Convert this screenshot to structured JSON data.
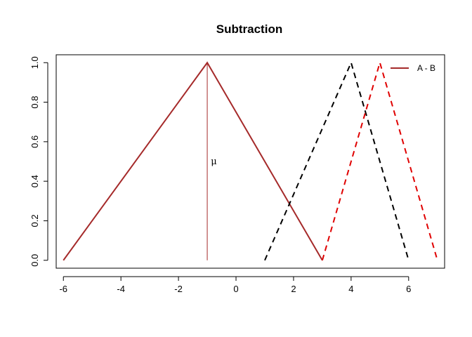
{
  "chart_data": {
    "type": "line",
    "title": "Subtraction",
    "xlabel": "",
    "ylabel": "",
    "xlim": [
      -6.25,
      7.25
    ],
    "ylim": [
      -0.04,
      1.04
    ],
    "x_ticks": [
      -6,
      -4,
      -2,
      0,
      2,
      4,
      6
    ],
    "y_ticks": [
      0.0,
      0.2,
      0.4,
      0.6,
      0.8,
      1.0
    ],
    "x_tick_labels": [
      "-6",
      "-4",
      "-2",
      "0",
      "2",
      "4",
      "6"
    ],
    "y_tick_labels": [
      "0.0",
      "0.2",
      "0.4",
      "0.6",
      "0.8",
      "1.0"
    ],
    "grid": false,
    "legend_position": "top-right",
    "series": [
      {
        "name": "A - B",
        "color": "#a52a2a",
        "style": "solid",
        "x": [
          -6,
          -1,
          3
        ],
        "y": [
          0,
          1,
          0
        ]
      },
      {
        "color": "#000000",
        "style": "dashed",
        "x": [
          1,
          4,
          6
        ],
        "y": [
          0,
          1,
          0
        ]
      },
      {
        "color": "#e00000",
        "style": "dashed",
        "x": [
          3,
          5,
          7
        ],
        "y": [
          0,
          1,
          0
        ]
      }
    ],
    "annotations": [
      {
        "type": "vline",
        "x": -1,
        "y_from": 0,
        "y_to": 1,
        "color": "#a52a2a"
      },
      {
        "type": "text",
        "text": "μ",
        "x": -0.75,
        "y": 0.5
      }
    ]
  }
}
